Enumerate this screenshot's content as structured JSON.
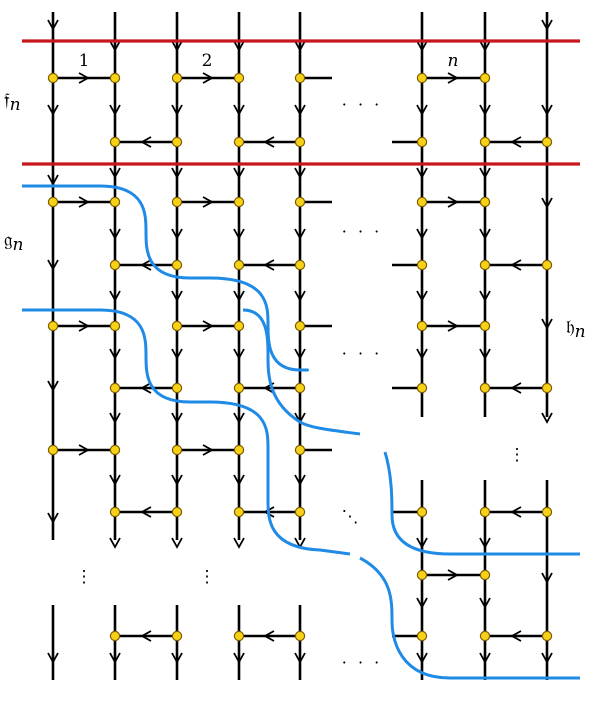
{
  "labels": {
    "col1": "1",
    "col2": "2",
    "coln": "n",
    "f_letter": "𝔣",
    "g_letter": "𝔤",
    "h_letter": "𝔥",
    "sub_n": "n",
    "hdots": "· · ·",
    "ddots": "⋱",
    "vdots": "⋮"
  },
  "colors": {
    "red_line": "#c8161d",
    "blue_path": "#1f8be6",
    "vertex_fill": "#f7d117",
    "vertex_stroke": "#7a5a00",
    "ink": "#000000"
  }
}
